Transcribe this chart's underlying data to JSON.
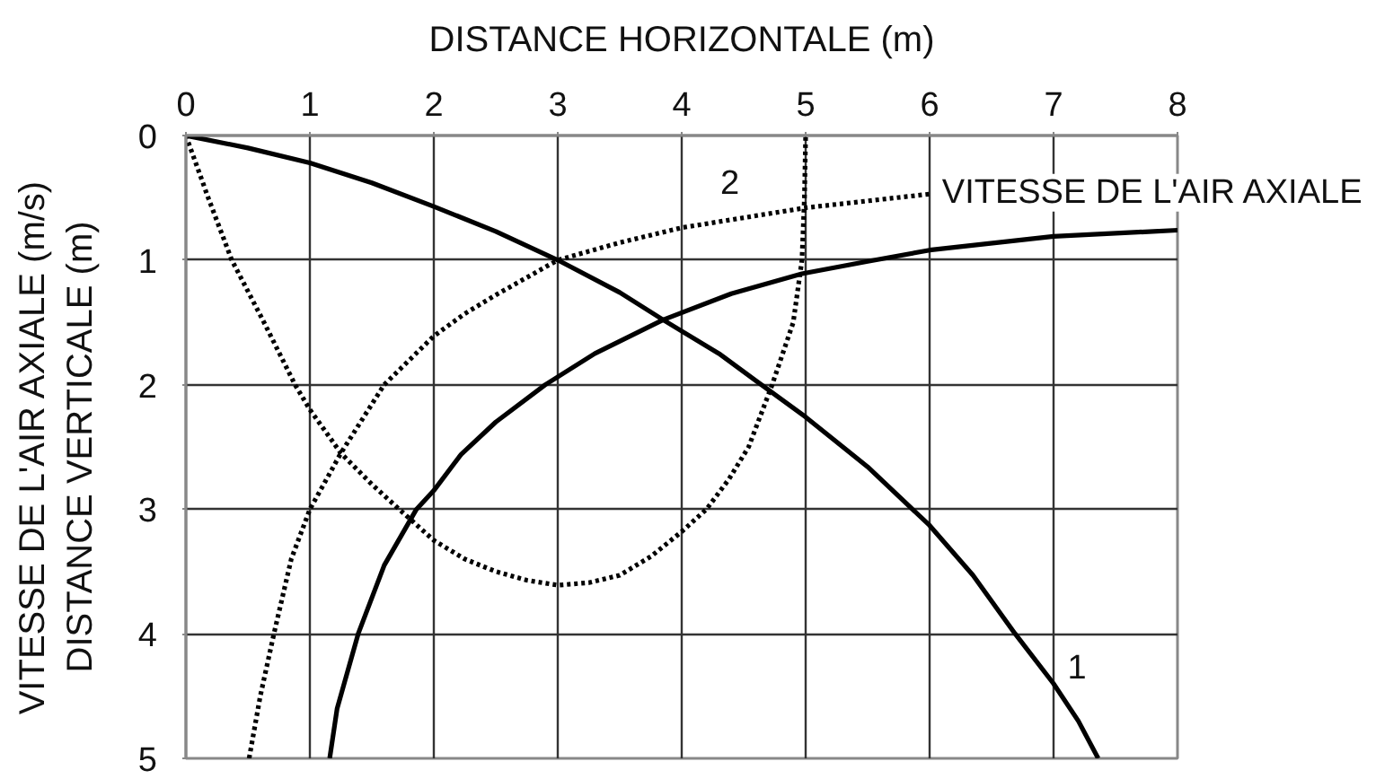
{
  "chart_data": {
    "type": "line",
    "xlabel": "DISTANCE HORIZONTALE (m)",
    "ylabel": "VITESSE DE L'AIR AXIALE (m/s)\nDISTANCE VERTICALE (m)",
    "xlim": [
      0,
      8
    ],
    "xticks": [
      0,
      1,
      2,
      3,
      4,
      5,
      6,
      7,
      8
    ],
    "ylim": [
      5,
      0
    ],
    "yticks": [
      0,
      1,
      2,
      3,
      4,
      5
    ],
    "grid": true,
    "series": [
      {
        "color": "#000000",
        "line_style": "solid",
        "x": [
          0,
          0.5,
          1,
          1.5,
          2,
          2.5,
          3,
          3.5,
          3.85,
          4.3,
          4.6,
          5,
          5.5,
          6,
          6.35,
          6.69,
          7,
          7.2,
          7.36
        ],
        "values": [
          0,
          0.1,
          0.22,
          0.38,
          0.57,
          0.77,
          1.0,
          1.26,
          1.48,
          1.75,
          1.97,
          2.26,
          2.66,
          3.13,
          3.53,
          4.0,
          4.4,
          4.7,
          5.0
        ]
      },
      {
        "color": "#000000",
        "line_style": "solid",
        "x": [
          1.16,
          1.22,
          1.39,
          1.6,
          1.86,
          2,
          2.22,
          2.5,
          2.9,
          3.3,
          3.85,
          4.4,
          4.97,
          5.5,
          6,
          7,
          8
        ],
        "values": [
          5,
          4.6,
          4,
          3.45,
          3,
          2.85,
          2.56,
          2.3,
          2.0,
          1.75,
          1.48,
          1.27,
          1.11,
          1.01,
          0.92,
          0.81,
          0.76
        ]
      },
      {
        "color": "#000000",
        "line_style": "dotted",
        "x": [
          0,
          0.09,
          0.18,
          0.37,
          0.63,
          0.88,
          1,
          1.25,
          1.5,
          1.72,
          2,
          2.25,
          2.5,
          2.75,
          3,
          3.25,
          3.5,
          3.75,
          4,
          4.2,
          4.38,
          4.54,
          4.73,
          4.9,
          4.97,
          4.99,
          5.0
        ],
        "values": [
          0,
          0.25,
          0.5,
          1,
          1.5,
          2,
          2.2,
          2.55,
          2.8,
          3,
          3.25,
          3.4,
          3.5,
          3.57,
          3.61,
          3.59,
          3.53,
          3.38,
          3.18,
          3,
          2.76,
          2.5,
          2,
          1.5,
          1,
          0.5,
          0
        ]
      },
      {
        "color": "#000000",
        "line_style": "dotted",
        "x": [
          0.51,
          0.6,
          0.71,
          0.85,
          1,
          1.25,
          1.6,
          2,
          2.25,
          2.5,
          3,
          3.5,
          4,
          5,
          6
        ],
        "values": [
          5,
          4.5,
          4,
          3.4,
          3,
          2.55,
          2,
          1.61,
          1.43,
          1.28,
          1.0,
          0.86,
          0.74,
          0.58,
          0.47
        ]
      }
    ],
    "annotations": [
      "1",
      "2",
      "VITESSE DE L'AIR AXIALE"
    ]
  }
}
